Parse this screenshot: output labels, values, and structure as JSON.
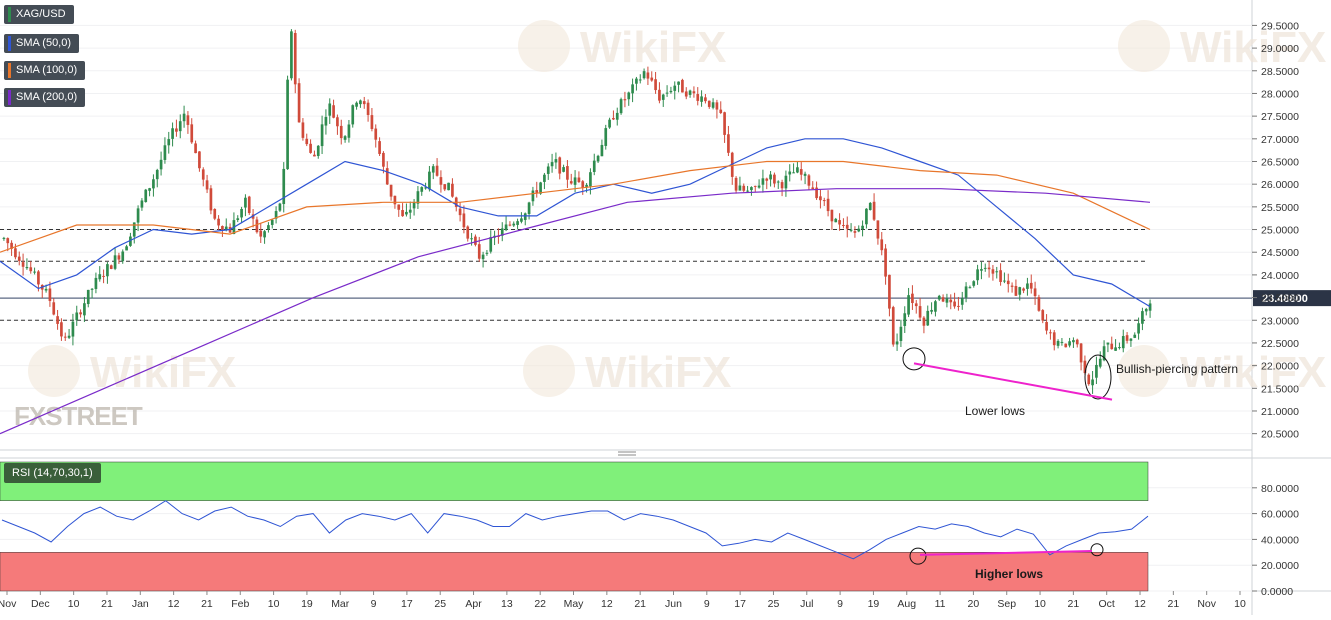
{
  "legends": {
    "symbol": "XAG/USD",
    "sma50": "SMA (50,0)",
    "sma100": "SMA (100,0)",
    "sma200": "SMA (200,0)",
    "rsi": "RSI (14,70,30,1)"
  },
  "watermark": {
    "brand": "FXSTREET",
    "wiki": "WikiFX"
  },
  "price_label": "23.48800",
  "colors": {
    "up": "#2e8b4e",
    "down": "#d04a3a",
    "sma50": "#2f55d4",
    "sma100": "#e8762b",
    "sma200": "#7a2bc9",
    "rsi_line": "#2f55d4",
    "trend": "#ee22cc",
    "rsi_overbought": "#80f07a",
    "rsi_oversold": "#f57a7a"
  },
  "annotations": {
    "bullish": "Bullish-piercing pattern",
    "lower_lows": "Lower lows",
    "higher_lows": "Higher lows"
  },
  "chart_data": [
    {
      "type": "candlestick",
      "symbol": "XAG/USD",
      "ylim": [
        20.25,
        29.95
      ],
      "y_ticks": [
        "29.5000",
        "29.0000",
        "28.5000",
        "28.0000",
        "27.5000",
        "27.0000",
        "26.5000",
        "26.0000",
        "25.5000",
        "25.0000",
        "24.5000",
        "24.0000",
        "23.5000",
        "23.0000",
        "22.5000",
        "22.0000",
        "21.5000",
        "21.0000",
        "20.5000"
      ],
      "x_labels": [
        "Nov",
        "Dec",
        "10",
        "21",
        "Jan",
        "12",
        "21",
        "Feb",
        "10",
        "19",
        "Mar",
        "9",
        "17",
        "25",
        "Apr",
        "13",
        "22",
        "May",
        "12",
        "21",
        "Jun",
        "9",
        "17",
        "25",
        "Jul",
        "9",
        "19",
        "Aug",
        "11",
        "20",
        "Sep",
        "10",
        "21",
        "Oct",
        "12",
        "21",
        "Nov",
        "10"
      ],
      "horizontal_levels": [
        25.0,
        24.3,
        23.0
      ],
      "last_price": 23.488,
      "price_series_approx": [
        [
          0,
          24.8
        ],
        [
          3,
          24.2
        ],
        [
          6,
          23.5
        ],
        [
          8,
          22.5
        ],
        [
          10,
          23.2
        ],
        [
          12,
          23.8
        ],
        [
          14,
          24.2
        ],
        [
          16,
          24.6
        ],
        [
          18,
          25.5
        ],
        [
          20,
          26.2
        ],
        [
          22,
          27.0
        ],
        [
          24,
          27.6
        ],
        [
          26,
          26.3
        ],
        [
          28,
          25.2
        ],
        [
          30,
          25.0
        ],
        [
          32,
          25.6
        ],
        [
          34,
          24.8
        ],
        [
          36,
          25.3
        ],
        [
          37,
          25.8
        ],
        [
          38,
          29.7
        ],
        [
          39,
          27.4
        ],
        [
          41,
          26.5
        ],
        [
          43,
          27.8
        ],
        [
          45,
          27.0
        ],
        [
          47,
          28.0
        ],
        [
          49,
          27.2
        ],
        [
          51,
          25.9
        ],
        [
          53,
          25.2
        ],
        [
          55,
          25.8
        ],
        [
          57,
          26.3
        ],
        [
          59,
          25.9
        ],
        [
          61,
          25.1
        ],
        [
          63,
          24.4
        ],
        [
          65,
          24.8
        ],
        [
          67,
          25.1
        ],
        [
          69,
          25.4
        ],
        [
          71,
          26.0
        ],
        [
          73,
          26.5
        ],
        [
          75,
          26.1
        ],
        [
          77,
          26.0
        ],
        [
          79,
          26.8
        ],
        [
          81,
          27.6
        ],
        [
          83,
          28.0
        ],
        [
          85,
          28.5
        ],
        [
          87,
          27.9
        ],
        [
          89,
          28.2
        ],
        [
          91,
          28.0
        ],
        [
          93,
          27.9
        ],
        [
          95,
          27.5
        ],
        [
          97,
          25.9
        ],
        [
          99,
          25.8
        ],
        [
          101,
          26.2
        ],
        [
          103,
          26.0
        ],
        [
          105,
          26.3
        ],
        [
          107,
          26.0
        ],
        [
          109,
          25.5
        ],
        [
          111,
          25.0
        ],
        [
          113,
          24.9
        ],
        [
          115,
          25.6
        ],
        [
          117,
          24.0
        ],
        [
          118,
          22.3
        ],
        [
          120,
          23.6
        ],
        [
          122,
          23.0
        ],
        [
          124,
          23.6
        ],
        [
          126,
          23.2
        ],
        [
          128,
          23.8
        ],
        [
          130,
          24.3
        ],
        [
          132,
          24.0
        ],
        [
          134,
          23.6
        ],
        [
          136,
          23.8
        ],
        [
          138,
          22.8
        ],
        [
          140,
          22.4
        ],
        [
          142,
          22.6
        ],
        [
          144,
          21.6
        ],
        [
          146,
          22.4
        ],
        [
          148,
          22.5
        ],
        [
          150,
          22.7
        ],
        [
          152,
          23.488
        ]
      ],
      "series": [
        {
          "name": "SMA (50,0)",
          "values_approx": [
            24.3,
            23.7,
            24.0,
            24.6,
            25.0,
            24.9,
            25.0,
            25.5,
            26.0,
            26.5,
            26.3,
            26.0,
            25.5,
            25.3,
            25.3,
            25.8,
            26.0,
            25.8,
            26.0,
            26.4,
            26.8,
            27.0,
            27.0,
            26.8,
            26.5,
            26.2,
            25.5,
            24.8,
            24.0,
            23.8,
            23.3
          ]
        },
        {
          "name": "SMA (100,0)",
          "values_approx": [
            24.5,
            25.1,
            25.1,
            24.9,
            25.5,
            25.6,
            25.6,
            25.8,
            26.0,
            26.3,
            26.5,
            26.5,
            26.3,
            26.2,
            25.8,
            25.0
          ]
        },
        {
          "name": "SMA (200,0)",
          "values_approx": [
            20.5,
            21.5,
            22.5,
            23.5,
            24.4,
            25.0,
            25.6,
            25.8,
            25.9,
            25.9,
            25.8,
            25.6
          ]
        }
      ],
      "annotations": [
        "Bullish-piercing pattern",
        "Lower lows"
      ]
    },
    {
      "type": "line",
      "name": "RSI (14,70,30,1)",
      "ylim": [
        0,
        100
      ],
      "y_ticks": [
        "80.0000",
        "60.0000",
        "40.0000",
        "20.0000",
        "0.0000"
      ],
      "overbought": 70,
      "oversold": 30,
      "values_approx": [
        55,
        50,
        45,
        38,
        50,
        60,
        65,
        58,
        55,
        62,
        70,
        60,
        55,
        62,
        65,
        58,
        55,
        50,
        58,
        60,
        45,
        55,
        60,
        58,
        55,
        60,
        45,
        60,
        58,
        55,
        50,
        50,
        60,
        55,
        58,
        60,
        62,
        62,
        55,
        60,
        58,
        55,
        50,
        45,
        35,
        37,
        40,
        38,
        45,
        40,
        35,
        30,
        25,
        32,
        40,
        45,
        50,
        48,
        52,
        50,
        45,
        42,
        48,
        44,
        28,
        35,
        40,
        45,
        46,
        48,
        58
      ],
      "annotations": [
        "Higher lows"
      ]
    }
  ]
}
